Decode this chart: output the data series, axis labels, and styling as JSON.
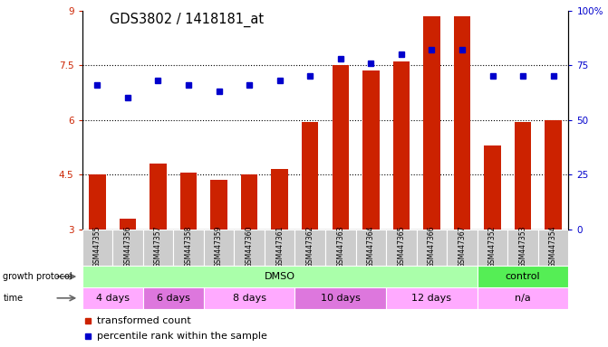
{
  "title": "GDS3802 / 1418181_at",
  "samples": [
    "GSM447355",
    "GSM447356",
    "GSM447357",
    "GSM447358",
    "GSM447359",
    "GSM447360",
    "GSM447361",
    "GSM447362",
    "GSM447363",
    "GSM447364",
    "GSM447365",
    "GSM447366",
    "GSM447367",
    "GSM447352",
    "GSM447353",
    "GSM447354"
  ],
  "bar_values": [
    4.5,
    3.3,
    4.8,
    4.55,
    4.35,
    4.5,
    4.65,
    5.95,
    7.5,
    7.35,
    7.6,
    8.85,
    8.85,
    5.3,
    5.95,
    6.0
  ],
  "dot_values": [
    66,
    60,
    68,
    66,
    63,
    66,
    68,
    70,
    78,
    76,
    80,
    82,
    82,
    70,
    70,
    70
  ],
  "ylim_left": [
    3,
    9
  ],
  "ylim_right": [
    0,
    100
  ],
  "yticks_left": [
    3,
    4.5,
    6,
    7.5,
    9
  ],
  "yticks_right": [
    0,
    25,
    50,
    75,
    100
  ],
  "bar_color": "#CC2200",
  "dot_color": "#0000CC",
  "growth_protocol_groups": [
    {
      "label": "DMSO",
      "start": 0,
      "end": 13,
      "color": "#AAFFAA"
    },
    {
      "label": "control",
      "start": 13,
      "end": 16,
      "color": "#55EE55"
    }
  ],
  "time_groups": [
    {
      "label": "4 days",
      "start": 0,
      "end": 2,
      "color": "#FFAAFF"
    },
    {
      "label": "6 days",
      "start": 2,
      "end": 4,
      "color": "#DD77DD"
    },
    {
      "label": "8 days",
      "start": 4,
      "end": 7,
      "color": "#FFAAFF"
    },
    {
      "label": "10 days",
      "start": 7,
      "end": 10,
      "color": "#DD77DD"
    },
    {
      "label": "12 days",
      "start": 10,
      "end": 13,
      "color": "#FFAAFF"
    },
    {
      "label": "n/a",
      "start": 13,
      "end": 16,
      "color": "#FFAAFF"
    }
  ],
  "legend_items": [
    {
      "label": "transformed count",
      "color": "#CC2200"
    },
    {
      "label": "percentile rank within the sample",
      "color": "#0000CC"
    }
  ],
  "row_label_growth": "growth protocol",
  "row_label_time": "time",
  "sample_box_color": "#CCCCCC",
  "dotted_lines": [
    4.5,
    6.0,
    7.5
  ],
  "bar_width": 0.55,
  "marker_size": 4,
  "tick_fontsize": 7.5,
  "sample_fontsize": 5.5,
  "title_fontsize": 10.5,
  "row_fontsize": 8,
  "legend_fontsize": 8
}
